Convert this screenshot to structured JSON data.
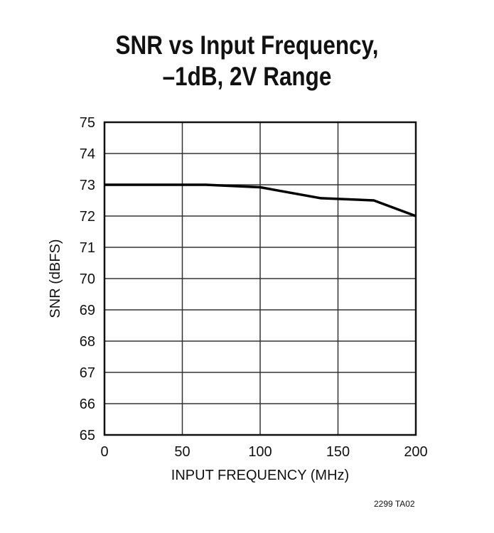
{
  "chart_data": {
    "type": "line",
    "title": [
      "SNR vs Input Frequency,",
      "–1dB, 2V Range"
    ],
    "xlabel": "INPUT FREQUENCY (MHz)",
    "ylabel": "SNR (dBFS)",
    "xlim": [
      0,
      200
    ],
    "ylim": [
      65,
      75
    ],
    "xticks": [
      0,
      50,
      100,
      150,
      200
    ],
    "yticks": [
      65,
      66,
      67,
      68,
      69,
      70,
      71,
      72,
      73,
      74,
      75
    ],
    "grid": true,
    "series": [
      {
        "x": [
          0,
          65,
          100,
          139,
          173,
          200
        ],
        "y": [
          73.0,
          73.0,
          72.92,
          72.57,
          72.5,
          72.0
        ],
        "color": "#000000"
      }
    ],
    "footnote": "2299 TA02"
  }
}
